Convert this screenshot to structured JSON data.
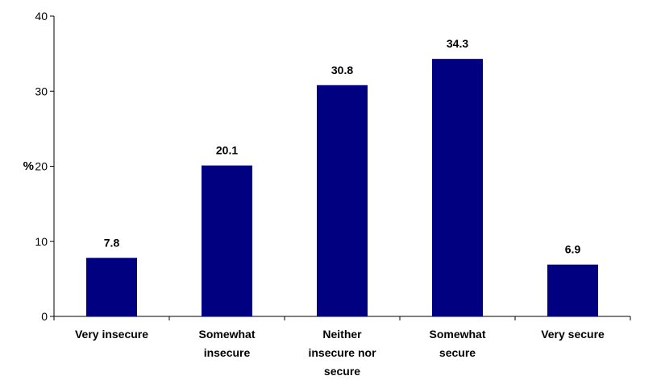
{
  "chart_data": {
    "type": "bar",
    "title": "",
    "xlabel": "",
    "ylabel": "%",
    "categories": [
      [
        "Very insecure"
      ],
      [
        "Somewhat",
        "insecure"
      ],
      [
        "Neither",
        "insecure nor",
        "secure"
      ],
      [
        "Somewhat",
        "secure"
      ],
      [
        "Very secure"
      ]
    ],
    "values": [
      7.8,
      20.1,
      30.8,
      34.3,
      6.9
    ],
    "data_labels": [
      "7.8",
      "20.1",
      "30.8",
      "34.3",
      "6.9"
    ],
    "y_ticks": [
      0,
      10,
      20,
      30,
      40
    ],
    "ylim": [
      0,
      40
    ],
    "grid": false,
    "legend": "none",
    "bar_color": "#000080"
  }
}
